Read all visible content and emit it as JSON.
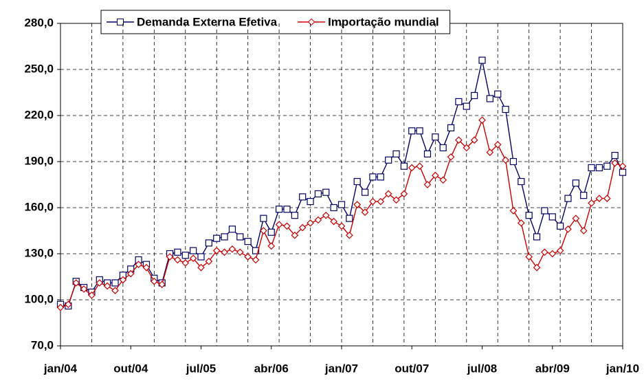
{
  "chart_data": {
    "type": "line",
    "categories": [
      "jan/04",
      null,
      null,
      null,
      null,
      null,
      null,
      null,
      null,
      "out/04",
      null,
      null,
      null,
      null,
      null,
      null,
      null,
      null,
      "jul/05",
      null,
      null,
      null,
      null,
      null,
      null,
      null,
      null,
      "abr/06",
      null,
      null,
      null,
      null,
      null,
      null,
      null,
      null,
      "jan/07",
      null,
      null,
      null,
      null,
      null,
      null,
      null,
      null,
      "out/07",
      null,
      null,
      null,
      null,
      null,
      null,
      null,
      null,
      "jul/08",
      null,
      null,
      null,
      null,
      null,
      null,
      null,
      null,
      "abr/09",
      null,
      null,
      null,
      null,
      null,
      null,
      null,
      null,
      "jan/10"
    ],
    "series": [
      {
        "name": "Demanda Externa Efetiva",
        "color": "#000066",
        "marker": "square",
        "values": [
          97,
          96,
          112,
          108,
          105,
          113,
          111,
          111,
          116,
          120,
          126,
          123,
          114,
          111,
          130,
          131,
          129,
          132,
          128,
          137,
          140,
          141,
          146,
          141,
          138,
          132,
          153,
          144,
          159,
          159,
          155,
          167,
          164,
          169,
          170,
          160,
          162,
          153,
          177,
          170,
          180,
          180,
          191,
          195,
          187,
          210,
          210,
          195,
          206,
          199,
          212,
          229,
          226,
          233,
          256,
          231,
          234,
          224,
          190,
          177,
          155,
          141,
          158,
          154,
          148,
          166,
          176,
          168,
          186,
          186,
          187,
          194,
          183
        ]
      },
      {
        "name": "Importação mundial",
        "color": "#cc0000",
        "marker": "diamond",
        "values": [
          95,
          97,
          111,
          107,
          103,
          111,
          109,
          106,
          113,
          117,
          123,
          121,
          112,
          110,
          128,
          126,
          124,
          127,
          121,
          125,
          132,
          131,
          133,
          131,
          128,
          126,
          145,
          135,
          149,
          148,
          142,
          147,
          150,
          152,
          155,
          151,
          148,
          142,
          162,
          157,
          164,
          164,
          169,
          165,
          169,
          186,
          187,
          175,
          181,
          178,
          193,
          204,
          199,
          204,
          217,
          196,
          201,
          191,
          158,
          150,
          128,
          121,
          131,
          130,
          132,
          146,
          153,
          145,
          163,
          166,
          166,
          189,
          187
        ]
      }
    ],
    "ylim": [
      70,
      280
    ],
    "yticks": [
      {
        "value": 70,
        "label": "70,0"
      },
      {
        "value": 100,
        "label": "100,0"
      },
      {
        "value": 130,
        "label": "130,0"
      },
      {
        "value": 160,
        "label": "160,0"
      },
      {
        "value": 190,
        "label": "190,0"
      },
      {
        "value": 220,
        "label": "220,0"
      },
      {
        "value": 250,
        "label": "250,0"
      },
      {
        "value": 280,
        "label": "280,0"
      }
    ],
    "grid": true,
    "x_grid_interval": 4,
    "legend": "top"
  }
}
